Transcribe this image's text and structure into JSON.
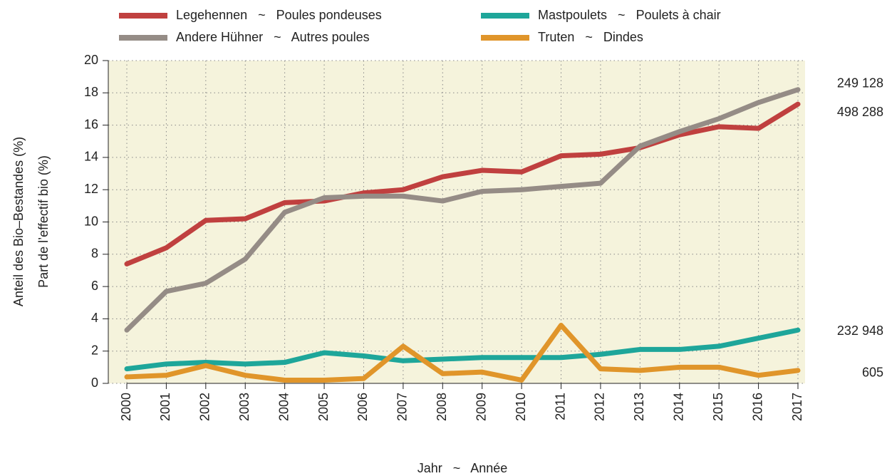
{
  "chart_data": {
    "type": "line",
    "y_label": [
      "Anteil des Bio–Bestandes (%)",
      "Part de l’effectif bio (%)"
    ],
    "x_label": "Jahr   ~   Année",
    "x": [
      2000,
      2001,
      2002,
      2003,
      2004,
      2005,
      2006,
      2007,
      2008,
      2009,
      2010,
      2011,
      2012,
      2013,
      2014,
      2015,
      2016,
      2017
    ],
    "xlim": [
      2000,
      2017
    ],
    "xticks": [
      2000,
      2001,
      2002,
      2003,
      2004,
      2005,
      2006,
      2007,
      2008,
      2009,
      2010,
      2011,
      2012,
      2013,
      2014,
      2015,
      2016,
      2017
    ],
    "ylim": [
      0,
      20
    ],
    "yticks": [
      0,
      2,
      4,
      6,
      8,
      10,
      12,
      14,
      16,
      18,
      20
    ],
    "grid": true,
    "series": [
      {
        "name": "Legehennen   ~   Poules pondeuses",
        "color": "#c0403f",
        "end_label": "498 288",
        "values": [
          7.4,
          8.4,
          10.1,
          10.2,
          11.2,
          11.3,
          11.8,
          12.0,
          12.8,
          13.2,
          13.1,
          14.1,
          14.2,
          14.6,
          15.4,
          15.9,
          15.8,
          17.3
        ]
      },
      {
        "name": "Andere Hühner   ~   Autres poules",
        "color": "#958c86",
        "end_label": "249 128",
        "values": [
          3.3,
          5.7,
          6.2,
          7.7,
          10.6,
          11.5,
          11.6,
          11.6,
          11.3,
          11.9,
          12.0,
          12.2,
          12.4,
          14.7,
          15.6,
          16.4,
          17.4,
          18.2
        ]
      },
      {
        "name": "Mastpoulets   ~   Poulets à chair",
        "color": "#1ea69a",
        "end_label": "232 948",
        "values": [
          0.9,
          1.2,
          1.3,
          1.2,
          1.3,
          1.9,
          1.7,
          1.4,
          1.5,
          1.6,
          1.6,
          1.6,
          1.8,
          2.1,
          2.1,
          2.3,
          2.8,
          3.3
        ]
      },
      {
        "name": "Truten   ~   Dindes",
        "color": "#e0952a",
        "end_label": "605",
        "values": [
          0.4,
          0.5,
          1.1,
          0.5,
          0.2,
          0.2,
          0.3,
          2.3,
          0.6,
          0.7,
          0.2,
          3.6,
          0.9,
          0.8,
          1.0,
          1.0,
          0.5,
          0.8
        ]
      }
    ]
  }
}
